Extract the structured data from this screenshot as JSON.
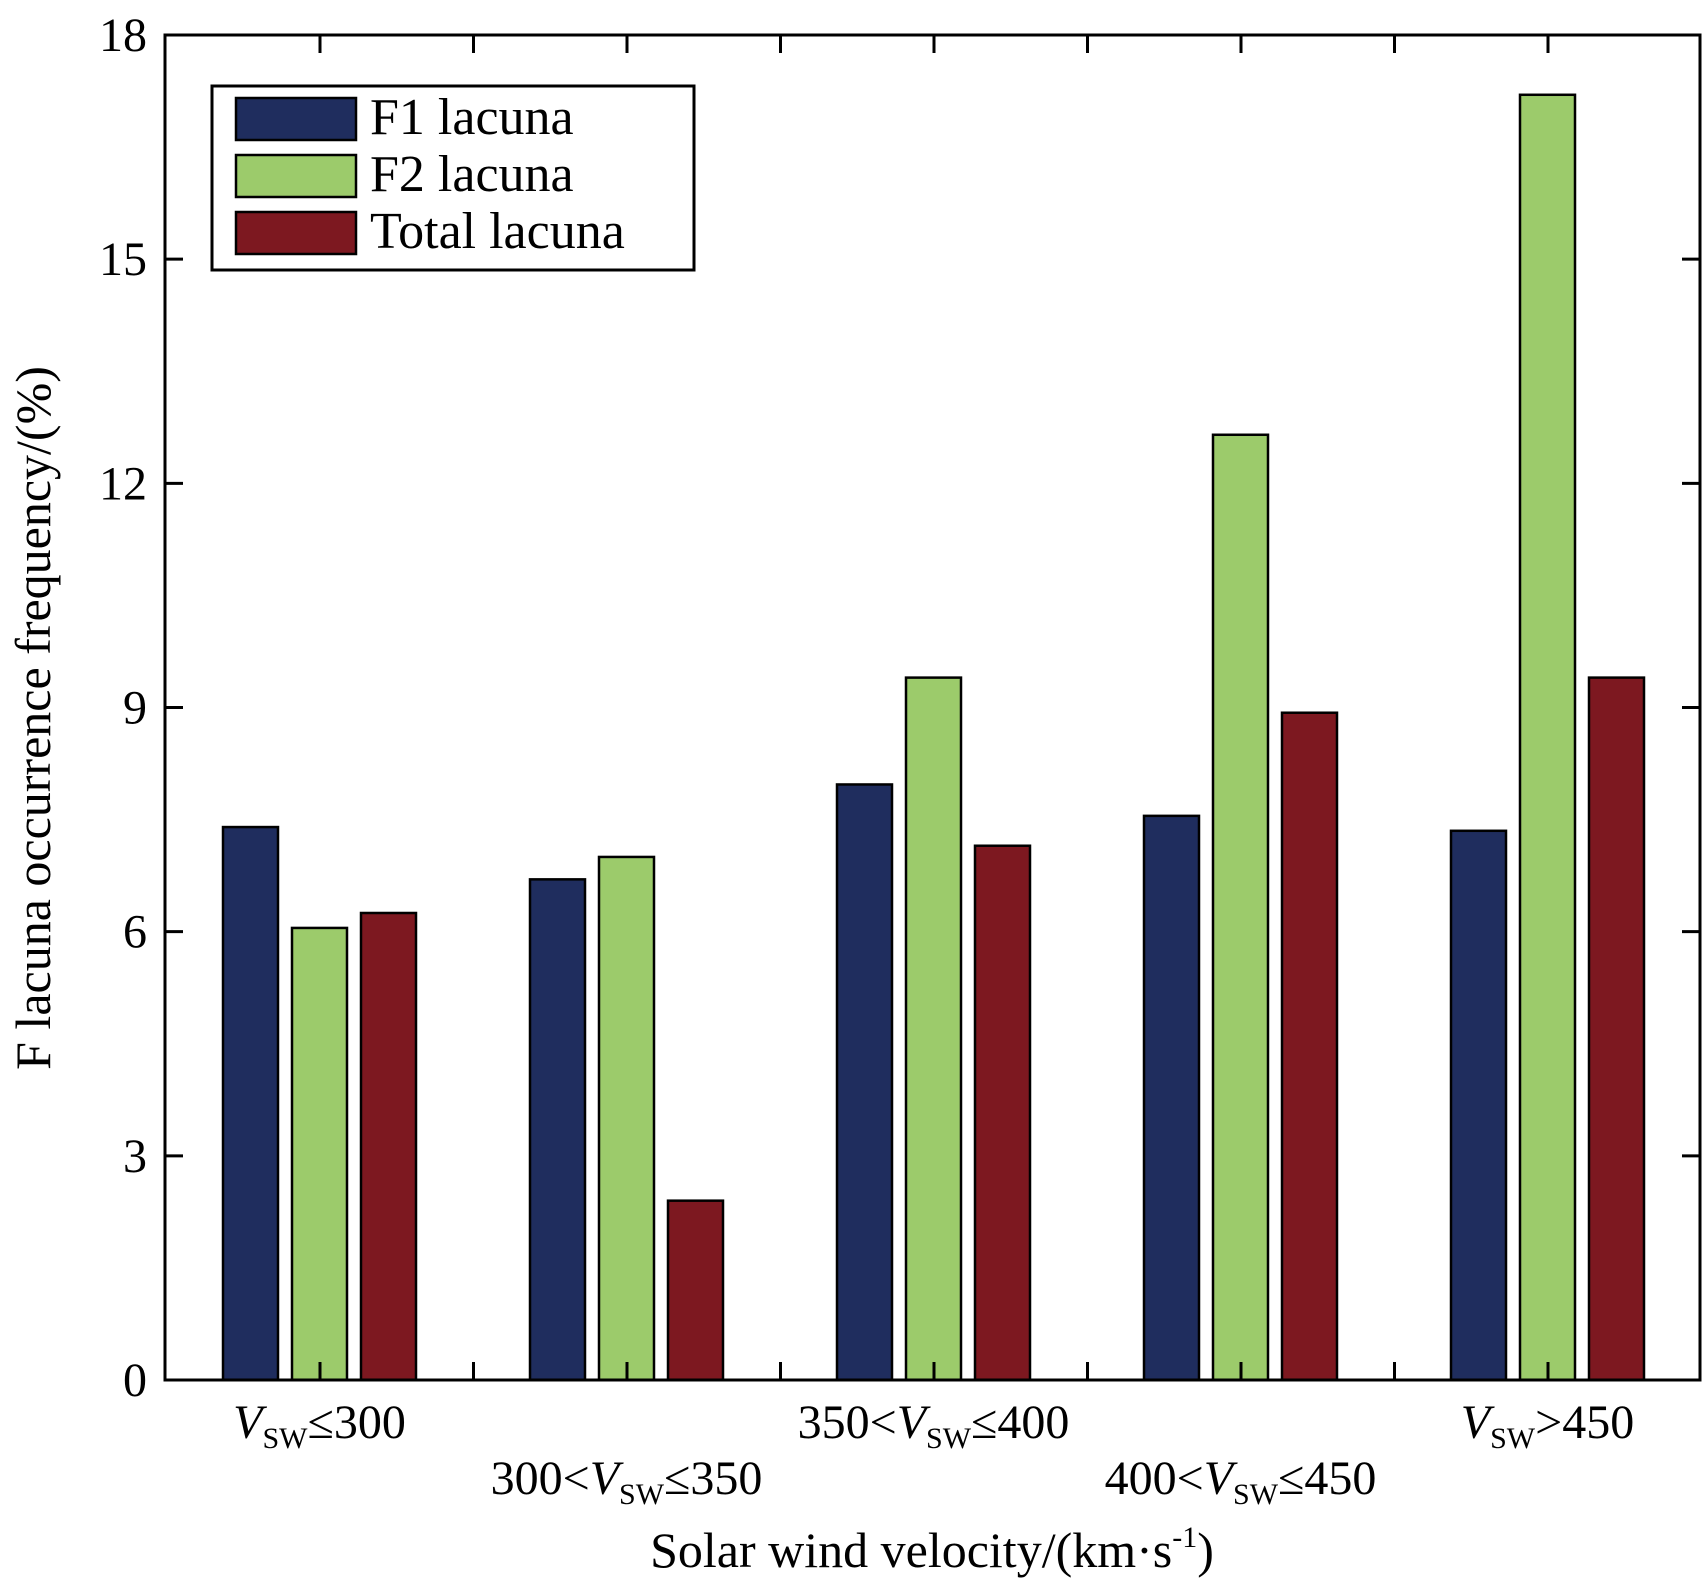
{
  "chart_data": {
    "type": "bar",
    "xlabel": "Solar wind velocity/(km·s-1)",
    "xlabel_parts": {
      "main": "Solar wind velocity/(km·s",
      "sup": "-1",
      "tail": ")"
    },
    "ylabel": "F lacuna occurrence frequency/(%)",
    "ylim": [
      0,
      18
    ],
    "yticks": [
      "0",
      "3",
      "6",
      "9",
      "12",
      "15",
      "18"
    ],
    "grid": false,
    "legend_position": "top-left",
    "categories": [
      "VSW≤300",
      "300<VSW≤350",
      "350<VSW≤400",
      "400<VSW≤450",
      "VSW>450"
    ],
    "category_labels": [
      {
        "pre": "",
        "var": "V",
        "sub": "SW",
        "post": "≤300"
      },
      {
        "pre": "300<",
        "var": "V",
        "sub": "SW",
        "post": "≤350"
      },
      {
        "pre": "350<",
        "var": "V",
        "sub": "SW",
        "post": "≤400"
      },
      {
        "pre": "400<",
        "var": "V",
        "sub": "SW",
        "post": "≤450"
      },
      {
        "pre": "",
        "var": "V",
        "sub": "SW",
        "post": ">450"
      }
    ],
    "series": [
      {
        "name": "F1 lacuna",
        "color": "#1f2d5e",
        "values": [
          7.4,
          6.7,
          7.97,
          7.55,
          7.35
        ]
      },
      {
        "name": "F2 lacuna",
        "color": "#9ccb6b",
        "values": [
          6.05,
          7.0,
          9.4,
          12.65,
          17.2
        ]
      },
      {
        "name": "Total lacuna",
        "color": "#7d1820",
        "values": [
          6.25,
          2.4,
          7.15,
          8.93,
          9.4
        ]
      }
    ]
  }
}
